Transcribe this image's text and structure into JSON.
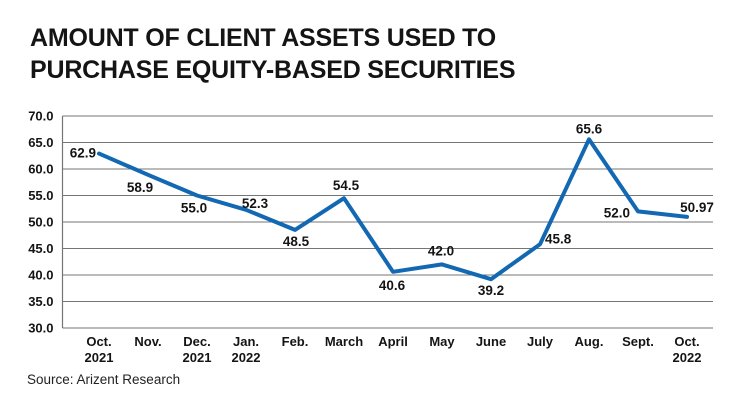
{
  "title": {
    "line1": "AMOUNT OF CLIENT ASSETS USED TO",
    "line2": "PURCHASE EQUITY-BASED SECURITIES"
  },
  "source": "Source: Arizent Research",
  "colors": {
    "line": "#1268b2",
    "grid": "#757575",
    "text": "#141414",
    "background": "#ffffff"
  },
  "chart_data": {
    "type": "line",
    "title": "Amount of client assets used to purchase equity-based securities",
    "categories": [
      [
        "Oct.",
        "2021"
      ],
      [
        "Nov."
      ],
      [
        "Dec.",
        "2021"
      ],
      [
        "Jan.",
        "2022"
      ],
      [
        "Feb."
      ],
      [
        "March"
      ],
      [
        "April"
      ],
      [
        "May"
      ],
      [
        "June"
      ],
      [
        "July"
      ],
      [
        "Aug."
      ],
      [
        "Sept."
      ],
      [
        "Oct.",
        "2022"
      ]
    ],
    "values": [
      62.9,
      58.9,
      55.0,
      52.3,
      48.5,
      54.5,
      40.6,
      42.0,
      39.2,
      45.8,
      65.6,
      52.0,
      50.97
    ],
    "value_labels": [
      "62.9",
      "58.9",
      "55.0",
      "52.3",
      "48.5",
      "54.5",
      "40.6",
      "42.0",
      "39.2",
      "45.8",
      "65.6",
      "52.0",
      "50.97"
    ],
    "label_offsets": [
      [
        -3,
        4,
        "end"
      ],
      [
        -8,
        17,
        "middle"
      ],
      [
        -3,
        17,
        "middle"
      ],
      [
        9,
        -2,
        "middle"
      ],
      [
        1,
        16,
        "middle"
      ],
      [
        2,
        -8,
        "middle"
      ],
      [
        -1,
        18,
        "middle"
      ],
      [
        -1,
        -9,
        "middle"
      ],
      [
        0,
        16,
        "middle"
      ],
      [
        5,
        -1,
        "start"
      ],
      [
        0,
        -6,
        "middle"
      ],
      [
        -8,
        6,
        "end"
      ],
      [
        10,
        -5,
        "middle"
      ]
    ],
    "xlabel": "",
    "ylabel": "",
    "ylim": [
      30.0,
      70.0
    ],
    "ytick_step": 5.0,
    "ytick_labels": [
      "70.0",
      "65.0",
      "60.0",
      "55.0",
      "50.0",
      "45.0",
      "40.0",
      "35.0",
      "30.0"
    ],
    "grid": true,
    "legend": false,
    "line_width": 4
  }
}
